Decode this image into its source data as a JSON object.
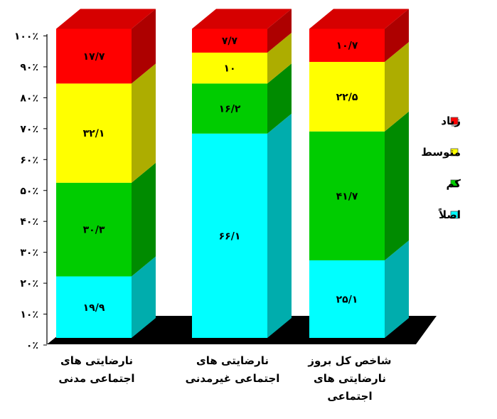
{
  "chart_data": {
    "type": "bar",
    "stacked": true,
    "percent_stacked": true,
    "three_d": true,
    "categories": [
      [
        "نارضایتی های",
        "اجتماعی مدنی"
      ],
      [
        "نارضایتی های",
        "اجتماعی غیرمدنی"
      ],
      [
        "شاخص کل بروز",
        "نارضایتی های",
        "اجتماعی"
      ]
    ],
    "series": [
      {
        "name": "اصلاً",
        "values": [
          19.9,
          66.1,
          25.1
        ],
        "labels": [
          "۱۹/۹",
          "۶۶/۱",
          "۲۵/۱"
        ],
        "color": "#00FFFF"
      },
      {
        "name": "کم",
        "values": [
          30.3,
          16.2,
          41.7
        ],
        "labels": [
          "۳۰/۳",
          "۱۶/۲",
          "۴۱/۷"
        ],
        "color": "#00CC00"
      },
      {
        "name": "متوسط",
        "values": [
          32.1,
          10,
          22.5
        ],
        "labels": [
          "۳۲/۱",
          "۱۰",
          "۲۲/۵"
        ],
        "color": "#FFFF00"
      },
      {
        "name": "زیاد",
        "values": [
          17.7,
          7.7,
          10.7
        ],
        "labels": [
          "۱۷/۷",
          "۷/۷",
          "۱۰/۷"
        ],
        "color": "#FF0000"
      }
    ],
    "y_ticks": [
      {
        "value": 0,
        "label": "۰٪"
      },
      {
        "value": 10,
        "label": "۱۰٪"
      },
      {
        "value": 20,
        "label": "۲۰٪"
      },
      {
        "value": 30,
        "label": "۳۰٪"
      },
      {
        "value": 40,
        "label": "۴۰٪"
      },
      {
        "value": 50,
        "label": "۵۰٪"
      },
      {
        "value": 60,
        "label": "۶۰٪"
      },
      {
        "value": 70,
        "label": "۷۰٪"
      },
      {
        "value": 80,
        "label": "۸۰٪"
      },
      {
        "value": 90,
        "label": "۹۰٪"
      },
      {
        "value": 100,
        "label": "۱۰۰٪"
      }
    ],
    "ylim": [
      0,
      100
    ],
    "grid": false,
    "legend_position": "right",
    "legend_order": [
      "زیاد",
      "متوسط",
      "کم",
      "اصلاً"
    ],
    "floor_color": "#000000"
  }
}
